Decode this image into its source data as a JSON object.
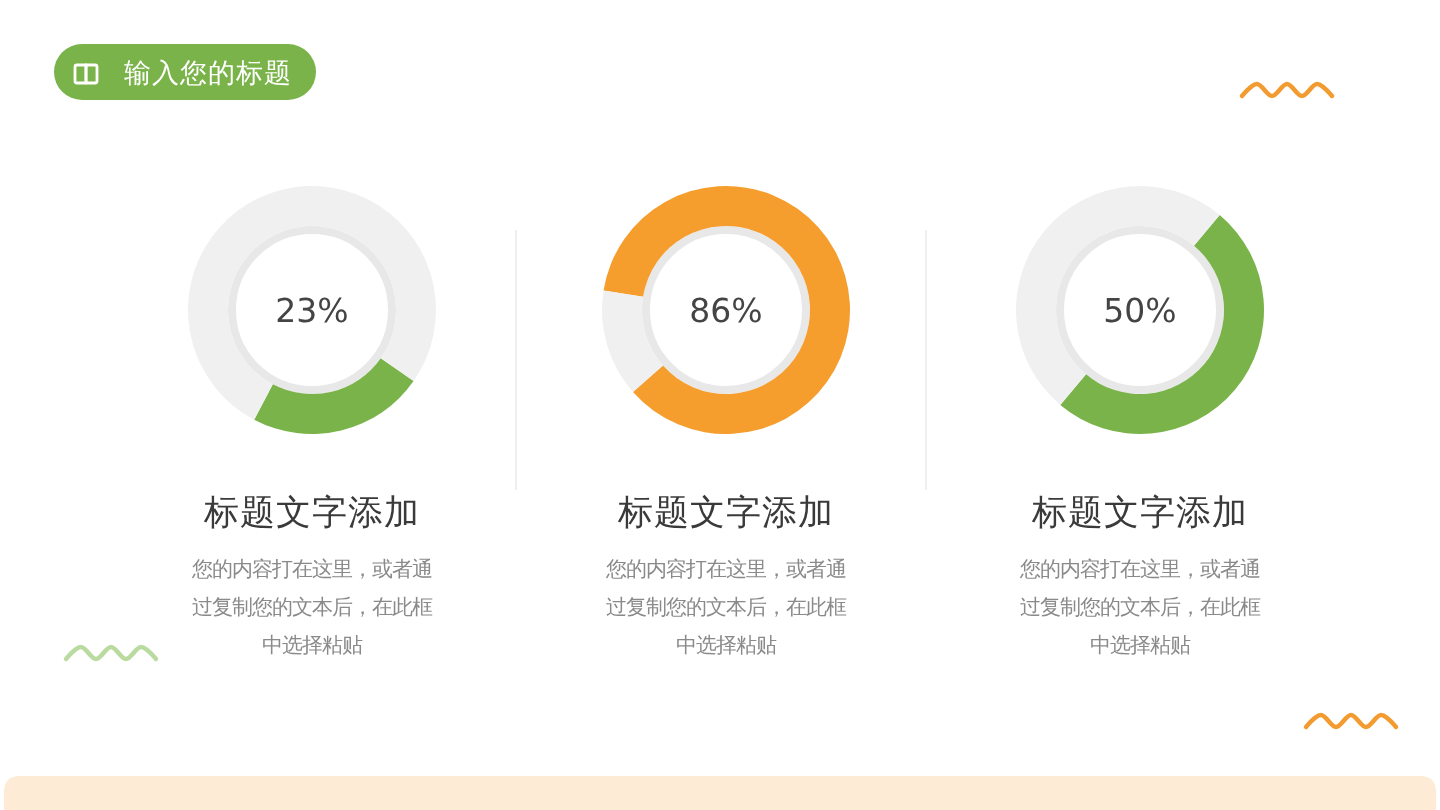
{
  "chart_data": [
    {
      "type": "other",
      "title": "输入您的标题"
    },
    {
      "type": "donut",
      "title": "标题文字添加",
      "categories": [
        null,
        null
      ],
      "values": [
        23,
        77
      ],
      "colors": [
        "#7ab349",
        "#f0f0f0"
      ],
      "value_labels": [
        "23%",
        null
      ],
      "annotations": [
        "您的内容打在这里，或者通过复制您的文本后，在此框中选择粘贴"
      ]
    },
    {
      "type": "donut",
      "title": "标题文字添加",
      "categories": [
        null,
        null
      ],
      "values": [
        86,
        14
      ],
      "colors": [
        "#f59d2d",
        "#f0f0f0"
      ],
      "value_labels": [
        "86%",
        null
      ],
      "annotations": [
        "您的内容打在这里，或者通过复制您的文本后，在此框中选择粘贴"
      ]
    },
    {
      "type": "donut",
      "title": "标题文字添加",
      "categories": [
        null,
        null
      ],
      "values": [
        50,
        50
      ],
      "colors": [
        "#7ab349",
        "#f0f0f0"
      ],
      "value_labels": [
        "50%",
        null
      ],
      "annotations": [
        "您的内容打在这里，或者通过复制您的文本后，在此框中选择粘贴"
      ]
    }
  ]
}
